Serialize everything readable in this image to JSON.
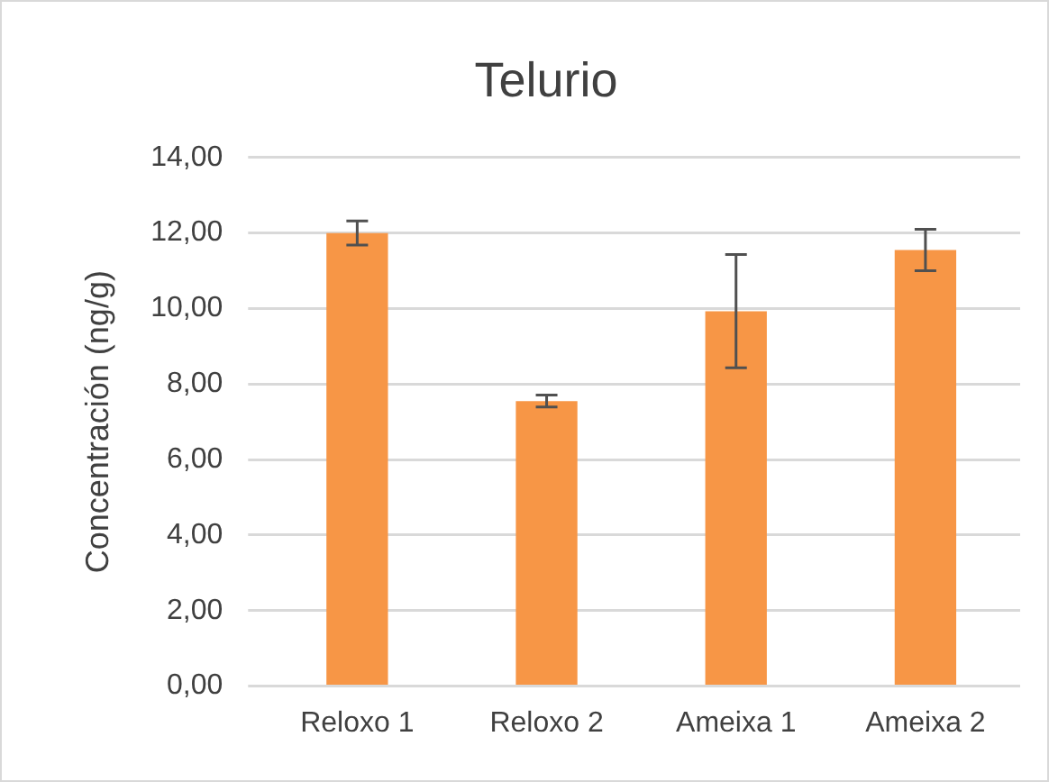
{
  "chart_data": {
    "type": "bar",
    "title": "Telurio",
    "ylabel": "Concentración (ng/g)",
    "categories": [
      "Reloxo 1",
      "Reloxo 2",
      "Ameixa 1",
      "Ameixa 2"
    ],
    "values": [
      12.0,
      7.55,
      9.93,
      11.55
    ],
    "errors": [
      0.32,
      0.16,
      1.5,
      0.55
    ],
    "color": "#f79646",
    "ylim": [
      0,
      14
    ],
    "yticks": [
      {
        "value": 0,
        "label": "0,00"
      },
      {
        "value": 2,
        "label": "2,00"
      },
      {
        "value": 4,
        "label": "4,00"
      },
      {
        "value": 6,
        "label": "6,00"
      },
      {
        "value": 8,
        "label": "8,00"
      },
      {
        "value": 10,
        "label": "10,00"
      },
      {
        "value": 12,
        "label": "12,00"
      },
      {
        "value": 14,
        "label": "14,00"
      }
    ],
    "grid": "y",
    "legend": false
  }
}
